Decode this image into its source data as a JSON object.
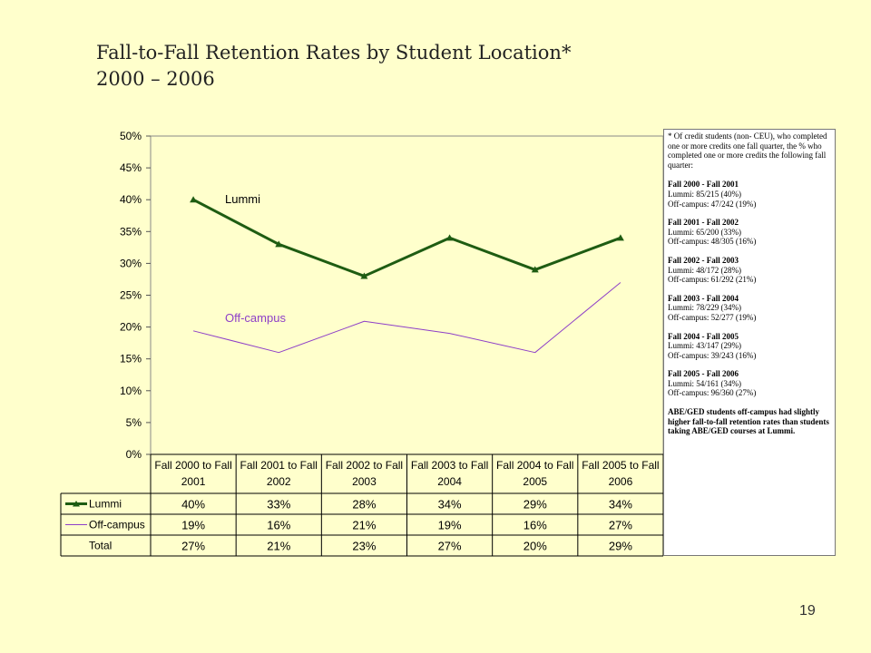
{
  "title": {
    "line1": "Fall-to-Fall Retention Rates by Student Location*",
    "line2": "2000 – 2006"
  },
  "page_number": "19",
  "colors": {
    "background": "#ffffcc",
    "lummi": "#1e5c12",
    "offcampus": "#8e3fc8"
  },
  "chart_data": {
    "type": "line",
    "categories": [
      [
        "Fall 2000 to Fall",
        "2001"
      ],
      [
        "Fall 2001 to Fall",
        "2002"
      ],
      [
        "Fall 2002 to Fall",
        "2003"
      ],
      [
        "Fall 2003 to Fall",
        "2004"
      ],
      [
        "Fall 2004 to Fall",
        "2005"
      ],
      [
        "Fall 2005 to Fall",
        "2006"
      ]
    ],
    "y_ticks": [
      "0%",
      "5%",
      "10%",
      "15%",
      "20%",
      "25%",
      "30%",
      "35%",
      "40%",
      "45%",
      "50%"
    ],
    "ylim": [
      0,
      50
    ],
    "grid": false,
    "series": [
      {
        "name": "Lummi",
        "values": [
          40,
          33,
          28,
          34,
          29,
          34
        ],
        "labels": [
          "40%",
          "33%",
          "28%",
          "34%",
          "29%",
          "34%"
        ],
        "marker": "triangle",
        "line_label": "Lummi"
      },
      {
        "name": "Off-campus",
        "values": [
          19.4,
          16,
          20.9,
          19,
          16,
          27
        ],
        "labels": [
          "19%",
          "16%",
          "21%",
          "19%",
          "16%",
          "27%"
        ],
        "marker": "none",
        "line_label": "Off-campus"
      }
    ],
    "table_rows": [
      {
        "name": "Lummi",
        "values": [
          "40%",
          "33%",
          "28%",
          "34%",
          "29%",
          "34%"
        ]
      },
      {
        "name": "Off-campus",
        "values": [
          "19%",
          "16%",
          "21%",
          "19%",
          "16%",
          "27%"
        ]
      },
      {
        "name": "Total",
        "values": [
          "27%",
          "21%",
          "23%",
          "27%",
          "20%",
          "29%"
        ]
      }
    ]
  },
  "notes": {
    "intro": "* Of credit students (non- CEU), who completed one or more credits one fall quarter, the % who completed one or more credits the following fall quarter:",
    "blocks": [
      {
        "head": "Fall 2000 - Fall 2001",
        "l1": "Lummi: 85/215 (40%)",
        "l2": "Off-campus: 47/242 (19%)"
      },
      {
        "head": "Fall 2001 - Fall 2002",
        "l1": "Lummi: 65/200 (33%)",
        "l2": "Off-campus: 48/305 (16%)"
      },
      {
        "head": "Fall 2002 - Fall 2003",
        "l1": "Lummi: 48/172 (28%)",
        "l2": "Off-campus: 61/292 (21%)"
      },
      {
        "head": "Fall 2003 - Fall 2004",
        "l1": "Lummi: 78/229 (34%)",
        "l2": "Off-campus: 52/277 (19%)"
      },
      {
        "head": "Fall 2004 - Fall 2005",
        "l1": "Lummi: 43/147 (29%)",
        "l2": "Off-campus: 39/243 (16%)"
      },
      {
        "head": "Fall 2005 - Fall 2006",
        "l1": "Lummi: 54/161 (34%)",
        "l2": "Off-campus: 96/360 (27%)"
      }
    ],
    "conclusion": "ABE/GED students off-campus had slightly higher fall-to-fall retention rates than students taking ABE/GED courses at Lummi."
  }
}
